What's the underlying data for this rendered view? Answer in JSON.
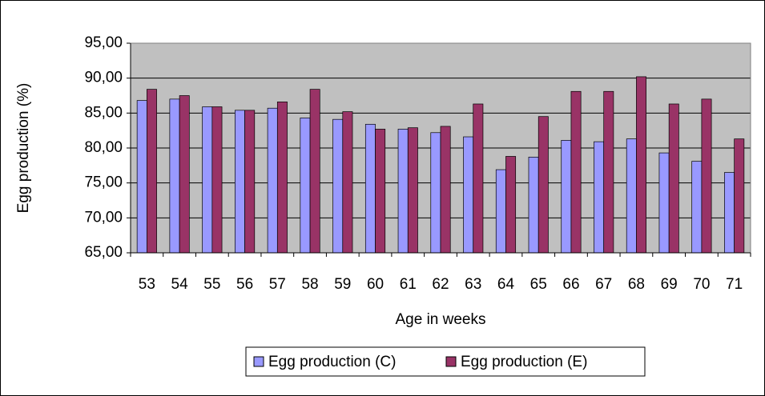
{
  "chart_data": {
    "type": "bar",
    "y_label": "Egg production (%)",
    "x_label": "Age in weeks",
    "categories": [
      "53",
      "54",
      "55",
      "56",
      "57",
      "58",
      "59",
      "60",
      "61",
      "62",
      "63",
      "64",
      "65",
      "66",
      "67",
      "68",
      "69",
      "70",
      "71"
    ],
    "series": [
      {
        "name": "Egg production (C)",
        "color": "#9999ff",
        "values": [
          86.8,
          87.0,
          85.9,
          85.4,
          85.7,
          84.3,
          84.1,
          83.4,
          82.7,
          82.2,
          81.6,
          76.9,
          78.7,
          81.1,
          80.9,
          81.3,
          79.3,
          78.1,
          76.5
        ]
      },
      {
        "name": "Egg production (E)",
        "color": "#993366",
        "values": [
          88.4,
          87.5,
          85.9,
          85.4,
          86.6,
          88.4,
          85.2,
          82.7,
          82.9,
          83.1,
          86.3,
          78.8,
          84.5,
          88.1,
          88.1,
          90.2,
          86.3,
          87.0,
          81.3
        ]
      }
    ],
    "ylim": [
      65,
      95
    ],
    "yticks": [
      {
        "value": 65,
        "label": "65,00"
      },
      {
        "value": 70,
        "label": "70,00"
      },
      {
        "value": 75,
        "label": "75,00"
      },
      {
        "value": 80,
        "label": "80,00"
      },
      {
        "value": 85,
        "label": "85,00"
      },
      {
        "value": 90,
        "label": "90,00"
      },
      {
        "value": 95,
        "label": "95,00"
      }
    ],
    "grid": true,
    "plot_background": "#c0c0c0",
    "legend": "bottom"
  }
}
